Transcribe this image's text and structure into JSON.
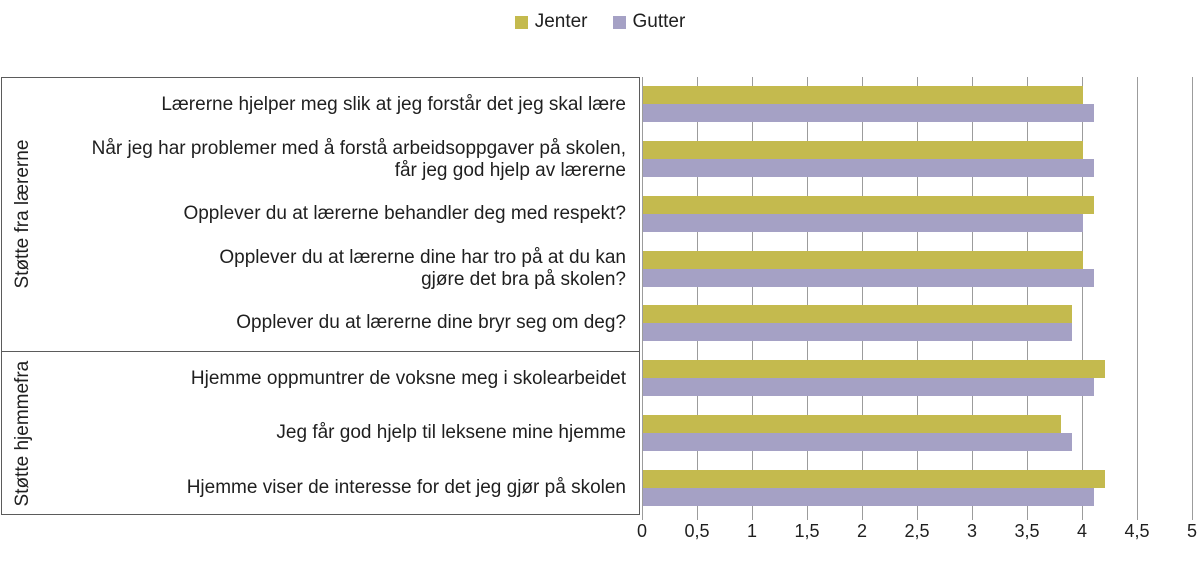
{
  "legend": {
    "position": "top",
    "items": [
      {
        "label": "Jenter",
        "color": "#c4ba4e"
      },
      {
        "label": "Gutter",
        "color": "#a5a1c5"
      }
    ]
  },
  "colors": {
    "jenter": "#c4ba4e",
    "gutter": "#a5a1c5",
    "gridline": "#9c9c9c",
    "box_border": "#5b5b5b"
  },
  "chart_data": {
    "type": "bar",
    "orientation": "horizontal",
    "title": "",
    "xlabel": "",
    "ylabel": "",
    "grid": true,
    "legend_position": "top",
    "xlim": [
      0,
      5
    ],
    "xticks": [
      "0",
      "0,5",
      "1",
      "1,5",
      "2",
      "2,5",
      "3",
      "3,5",
      "4",
      "4,5",
      "5"
    ],
    "xtick_values": [
      0,
      0.5,
      1,
      1.5,
      2,
      2.5,
      3,
      3.5,
      4,
      4.5,
      5
    ],
    "groups": [
      {
        "label": "Støtte fra lærerne",
        "category_indexes": [
          0,
          1,
          2,
          3,
          4
        ]
      },
      {
        "label": "Støtte hjemmefra",
        "category_indexes": [
          5,
          6,
          7
        ]
      }
    ],
    "categories": [
      {
        "label": "Lærerne hjelper meg slik at jeg forstår det jeg skal lære",
        "lines": [
          "Lærerne hjelper meg slik at jeg forstår det jeg skal lære"
        ]
      },
      {
        "label": "Når jeg har problemer med å forstå arbeidsoppgaver på skolen, får jeg god hjelp av lærerne",
        "lines": [
          "Når jeg har problemer med å forstå arbeidsoppgaver på skolen,",
          "får jeg god hjelp av lærerne"
        ]
      },
      {
        "label": "Opplever du at lærerne behandler deg med respekt?",
        "lines": [
          "Opplever du at lærerne behandler deg med respekt?"
        ]
      },
      {
        "label": "Opplever du at lærerne dine har tro på at du kan gjøre det bra på skolen?",
        "lines": [
          "Opplever du at lærerne dine har tro på at du kan",
          "gjøre det bra på skolen?"
        ]
      },
      {
        "label": "Opplever du at lærerne dine bryr seg om deg?",
        "lines": [
          "Opplever du at lærerne dine bryr seg om deg?"
        ]
      },
      {
        "label": "Hjemme oppmuntrer de voksne meg i skolearbeidet",
        "lines": [
          "Hjemme oppmuntrer de voksne meg i skolearbeidet"
        ]
      },
      {
        "label": "Jeg får god hjelp til leksene mine hjemme",
        "lines": [
          "Jeg får god hjelp til leksene mine hjemme"
        ]
      },
      {
        "label": "Hjemme viser de interesse for det jeg gjør på skolen",
        "lines": [
          "Hjemme viser de interesse for det jeg gjør på skolen"
        ]
      }
    ],
    "series": [
      {
        "name": "Jenter",
        "color": "#c4ba4e",
        "values": [
          4.0,
          4.0,
          4.1,
          4.0,
          3.9,
          4.2,
          3.8,
          4.2
        ]
      },
      {
        "name": "Gutter",
        "color": "#a5a1c5",
        "values": [
          4.1,
          4.1,
          4.0,
          4.1,
          3.9,
          4.1,
          3.9,
          4.1
        ]
      }
    ]
  }
}
